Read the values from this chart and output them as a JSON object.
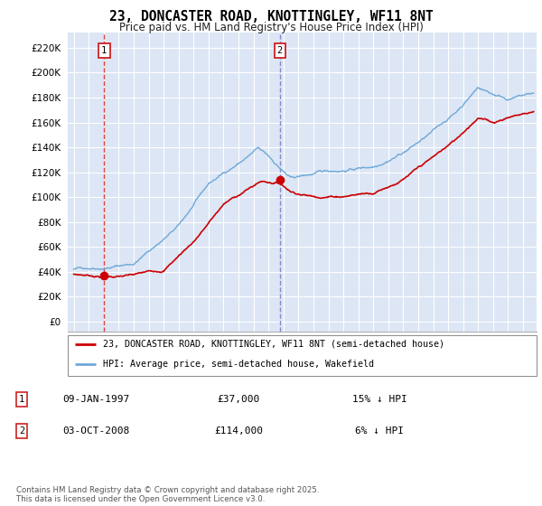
{
  "title": "23, DONCASTER ROAD, KNOTTINGLEY, WF11 8NT",
  "subtitle": "Price paid vs. HM Land Registry's House Price Index (HPI)",
  "legend_line1": "23, DONCASTER ROAD, KNOTTINGLEY, WF11 8NT (semi-detached house)",
  "legend_line2": "HPI: Average price, semi-detached house, Wakefield",
  "ann1_num": "1",
  "ann1_date": "09-JAN-1997",
  "ann1_price": "£37,000",
  "ann1_hpi": "15% ↓ HPI",
  "ann2_num": "2",
  "ann2_date": "03-OCT-2008",
  "ann2_price": "£114,000",
  "ann2_hpi": "6% ↓ HPI",
  "vline1_x": 1997.03,
  "vline2_x": 2008.76,
  "yticks": [
    0,
    20000,
    40000,
    60000,
    80000,
    100000,
    120000,
    140000,
    160000,
    180000,
    200000,
    220000
  ],
  "ylim": [
    -8000,
    232000
  ],
  "xlim_start": 1994.6,
  "xlim_end": 2025.9,
  "plot_bg_color": "#dce6f5",
  "red_line_color": "#cc0000",
  "blue_line_color": "#6fa8d8",
  "vline1_color": "#dd4444",
  "vline2_color": "#8888cc",
  "grid_color": "#ffffff",
  "sale1_year": 1997.03,
  "sale1_price": 37000,
  "sale2_year": 2008.76,
  "sale2_price": 114000,
  "footer": "Contains HM Land Registry data © Crown copyright and database right 2025.\nThis data is licensed under the Open Government Licence v3.0."
}
